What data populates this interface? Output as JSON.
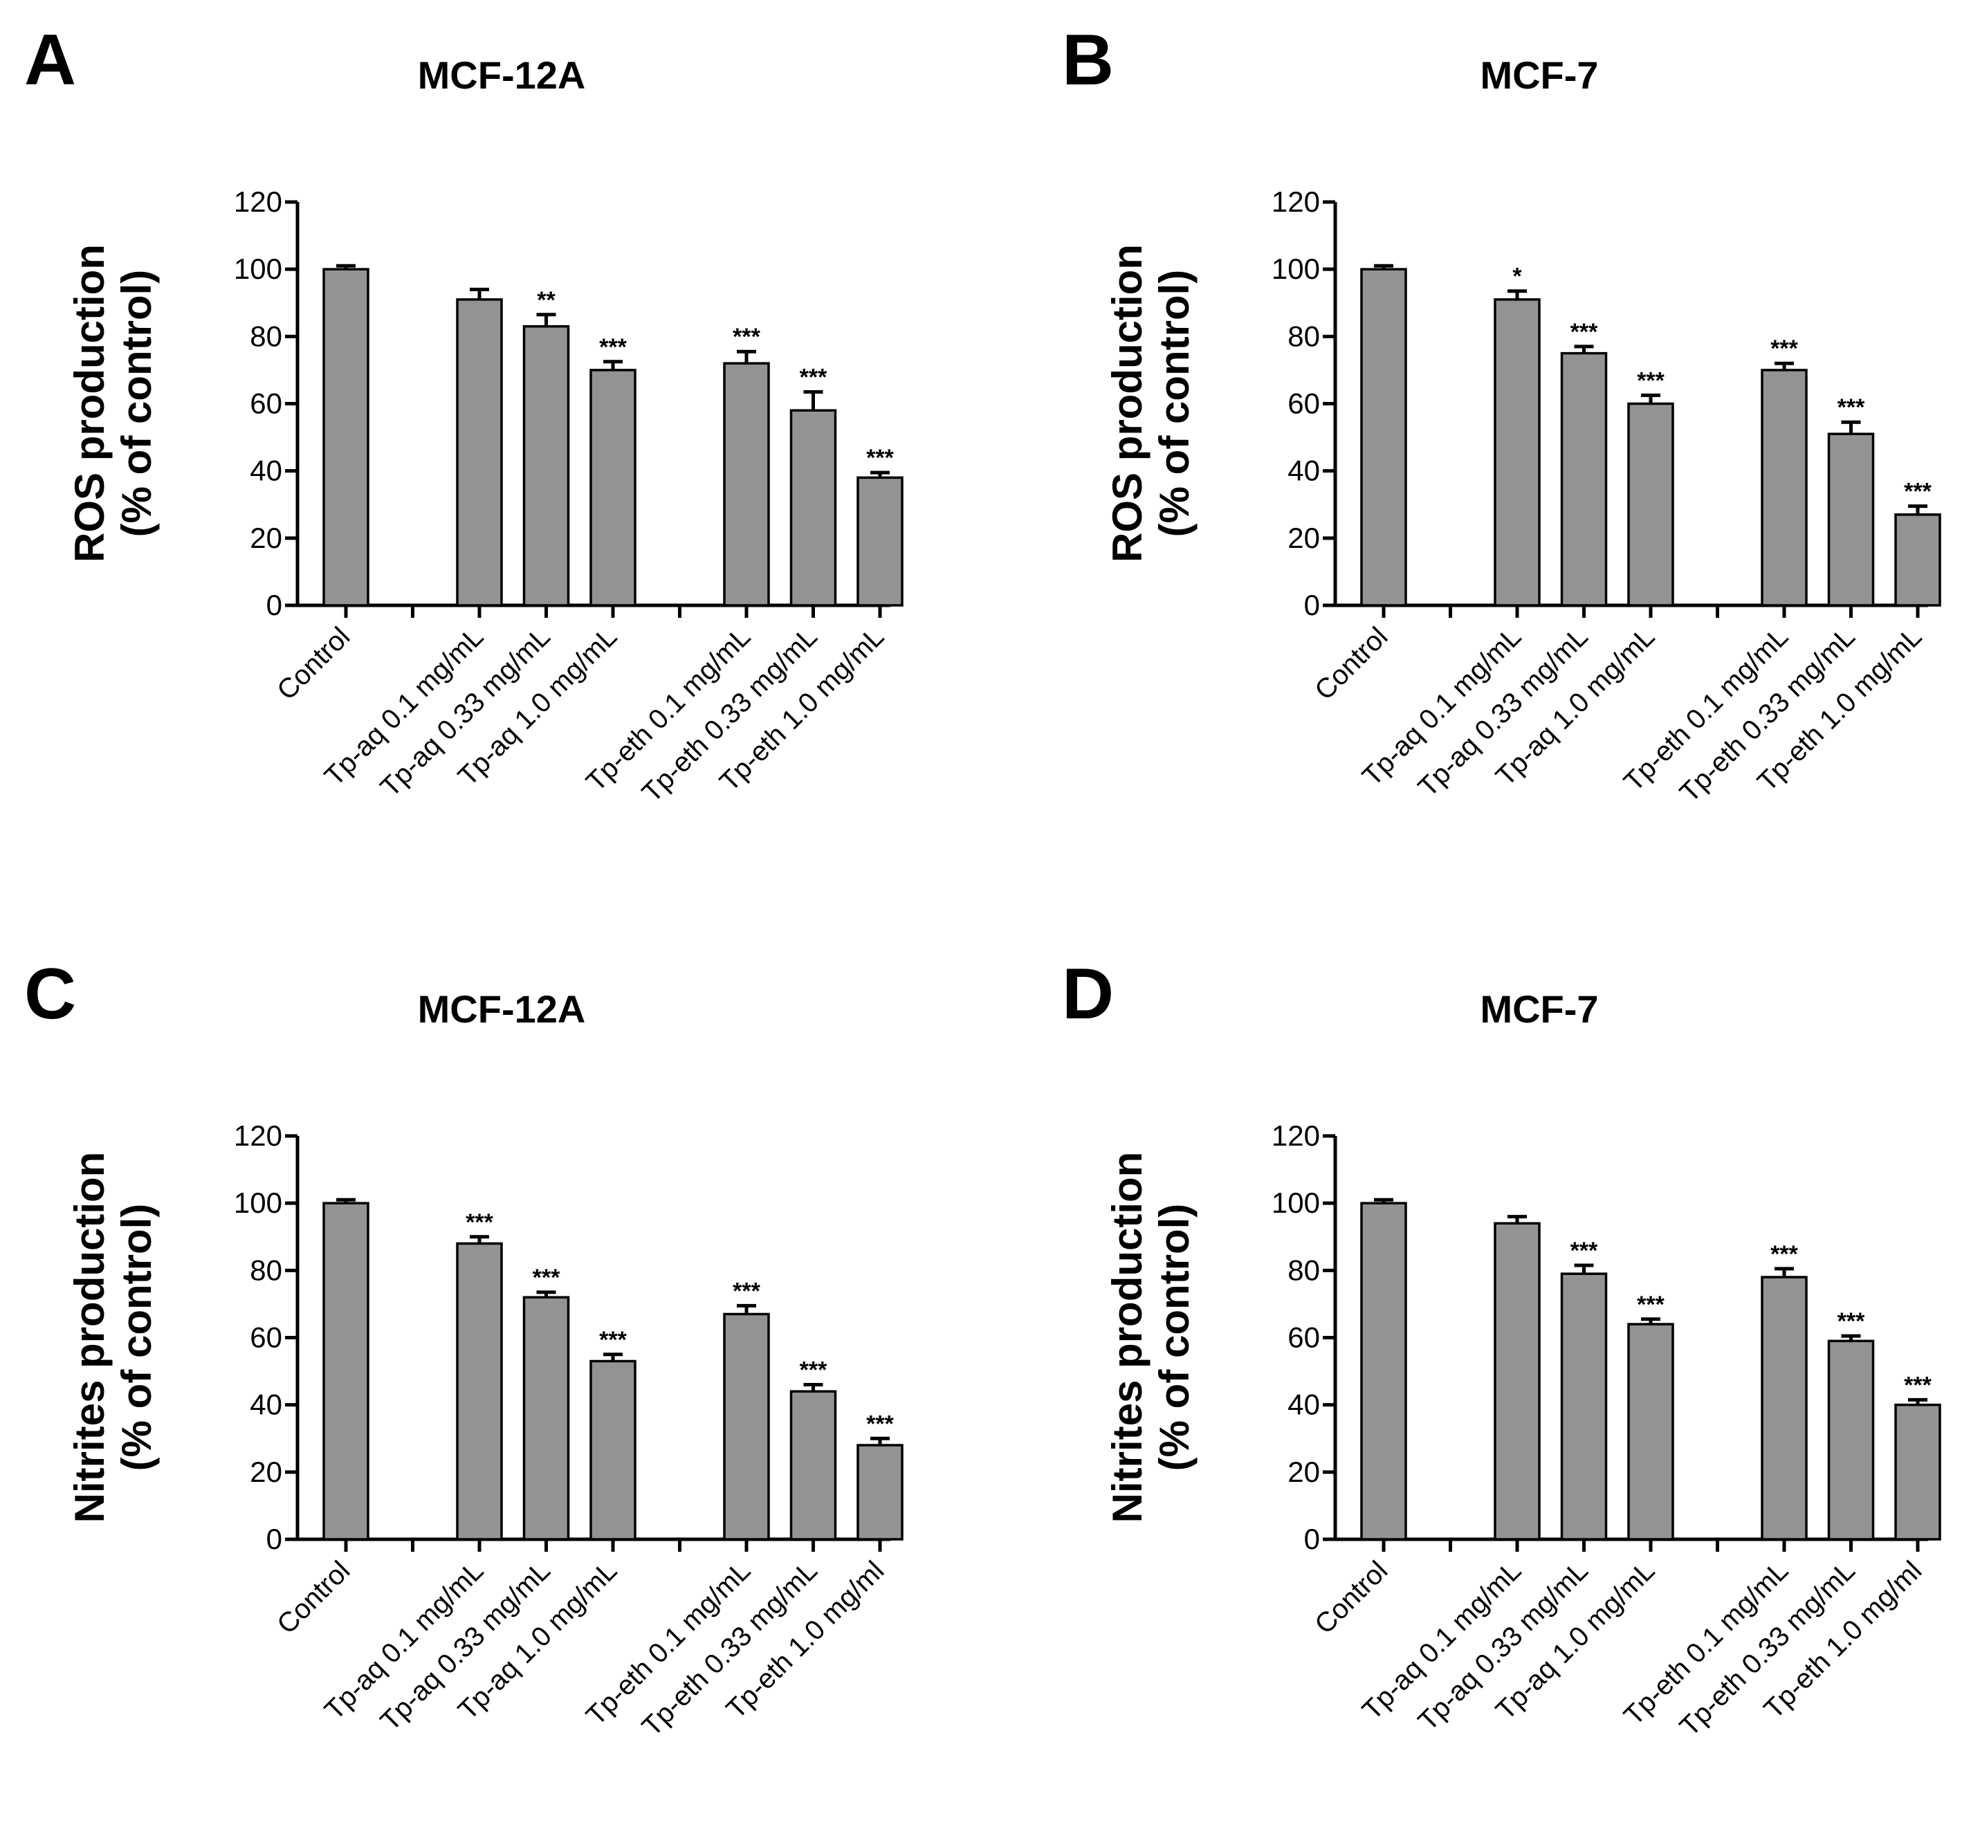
{
  "chart_data": [
    {
      "panel": "A",
      "type": "bar",
      "title": "MCF-12A",
      "ylabel": [
        "ROS production",
        "(% of control)"
      ],
      "ylim": [
        0,
        120
      ],
      "yticks": [
        0,
        20,
        40,
        60,
        80,
        100,
        120
      ],
      "categories": [
        "Control",
        "",
        "Tp-aq 0.1 mg/mL",
        "Tp-aq 0.33 mg/mL",
        "Tp-aq 1.0 mg/mL",
        "",
        "Tp-eth 0.1 mg/mL",
        "Tp-eth 0.33 mg/mL",
        "Tp-eth 1.0 mg/mL"
      ],
      "values": [
        100,
        null,
        91,
        83,
        70,
        null,
        72,
        58,
        38
      ],
      "errors": [
        1,
        null,
        3,
        3.5,
        2.5,
        null,
        3.5,
        5.5,
        1.5
      ],
      "significance": [
        "",
        "",
        "",
        "**",
        "***",
        "",
        "***",
        "***",
        "***"
      ]
    },
    {
      "panel": "B",
      "type": "bar",
      "title": "MCF-7",
      "ylabel": [
        "ROS production",
        "(% of control)"
      ],
      "ylim": [
        0,
        120
      ],
      "yticks": [
        0,
        20,
        40,
        60,
        80,
        100,
        120
      ],
      "categories": [
        "Control",
        "",
        "Tp-aq 0.1 mg/mL",
        "Tp-aq 0.33 mg/mL",
        "Tp-aq 1.0 mg/mL",
        "",
        "Tp-eth 0.1 mg/mL",
        "Tp-eth 0.33 mg/mL",
        "Tp-eth 1.0 mg/mL"
      ],
      "values": [
        100,
        null,
        91,
        75,
        60,
        null,
        70,
        51,
        27
      ],
      "errors": [
        1,
        null,
        2.5,
        2,
        2.5,
        null,
        2,
        3.5,
        2.5
      ],
      "significance": [
        "",
        "",
        "*",
        "***",
        "***",
        "",
        "***",
        "***",
        "***"
      ]
    },
    {
      "panel": "C",
      "type": "bar",
      "title": "MCF-12A",
      "ylabel": [
        "Nitrites production",
        "(% of control)"
      ],
      "ylim": [
        0,
        120
      ],
      "yticks": [
        0,
        20,
        40,
        60,
        80,
        100,
        120
      ],
      "categories": [
        "Control",
        "",
        "Tp-aq 0.1 mg/mL",
        "Tp-aq 0.33 mg/mL",
        "Tp-aq 1.0 mg/mL",
        "",
        "Tp-eth 0.1 mg/mL",
        "Tp-eth 0.33 mg/mL",
        "Tp-eth 1.0 mg/ml"
      ],
      "values": [
        100,
        null,
        88,
        72,
        53,
        null,
        67,
        44,
        28
      ],
      "errors": [
        1,
        null,
        2,
        1.5,
        2,
        null,
        2.5,
        2,
        2
      ],
      "significance": [
        "",
        "",
        "***",
        "***",
        "***",
        "",
        "***",
        "***",
        "***"
      ]
    },
    {
      "panel": "D",
      "type": "bar",
      "title": "MCF-7",
      "ylabel": [
        "Nitrites production",
        "(% of control)"
      ],
      "ylim": [
        0,
        120
      ],
      "yticks": [
        0,
        20,
        40,
        60,
        80,
        100,
        120
      ],
      "categories": [
        "Control",
        "",
        "Tp-aq 0.1 mg/mL",
        "Tp-aq 0.33 mg/mL",
        "Tp-aq 1.0 mg/mL",
        "",
        "Tp-eth 0.1 mg/mL",
        "Tp-eth 0.33 mg/mL",
        "Tp-eth 1.0 mg/ml"
      ],
      "values": [
        100,
        null,
        94,
        79,
        64,
        null,
        78,
        59,
        40
      ],
      "errors": [
        1,
        null,
        2,
        2.5,
        1.5,
        null,
        2.5,
        1.5,
        1.5
      ],
      "significance": [
        "",
        "",
        "",
        "***",
        "***",
        "",
        "***",
        "***",
        "***"
      ]
    }
  ]
}
